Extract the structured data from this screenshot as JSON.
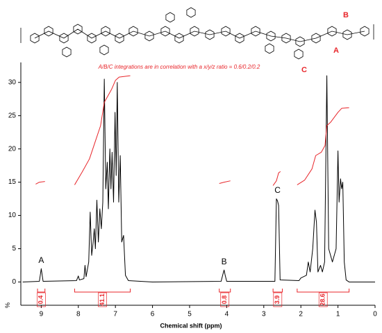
{
  "chart_data": {
    "type": "line",
    "note": "A/B/C integrations are in correlation with a x/y/z ratio = 0.6/0.2/0.2",
    "x_label": "Chemical shift (ppm)",
    "y_label": "%",
    "xlim": [
      9.55,
      0
    ],
    "ylim": [
      -3.5,
      33
    ],
    "xticks": [
      9,
      8,
      7,
      6,
      5,
      4,
      3,
      2,
      1,
      0
    ],
    "yticks": [
      0,
      5,
      10,
      15,
      20,
      25,
      30
    ],
    "series": [
      {
        "color": "#000000",
        "x": [
          9.5,
          9.05,
          9.0,
          8.95,
          8.05,
          8.0,
          7.97,
          7.85,
          7.82,
          7.79,
          7.72,
          7.68,
          7.64,
          7.6,
          7.57,
          7.54,
          7.5,
          7.46,
          7.42,
          7.38,
          7.34,
          7.3,
          7.26,
          7.22,
          7.19,
          7.15,
          7.12,
          7.09,
          7.05,
          7.01,
          6.98,
          6.95,
          6.91,
          6.87,
          6.83,
          6.78,
          6.73,
          6.65,
          6.0,
          4.15,
          4.1,
          4.07,
          4.04,
          4.0,
          2.7,
          2.66,
          2.63,
          2.6,
          2.56,
          2.05,
          2.0,
          1.85,
          1.8,
          1.75,
          1.68,
          1.62,
          1.58,
          1.54,
          1.47,
          1.42,
          1.36,
          1.3,
          1.25,
          1.15,
          1.05,
          1.0,
          0.97,
          0.93,
          0.9,
          0.87,
          0.83,
          0.78,
          0.7,
          0.0
        ],
        "values": [
          0,
          0.1,
          2.0,
          0.1,
          0.2,
          0.9,
          0.3,
          0.5,
          2.5,
          0.8,
          3,
          10.5,
          4,
          6,
          8,
          5,
          12.3,
          6,
          11,
          8,
          12,
          30.5,
          14,
          18,
          11,
          20,
          14,
          19.5,
          12,
          25.5,
          16,
          30,
          12,
          19,
          6,
          7,
          1,
          0.2,
          0,
          0.1,
          1.2,
          1.8,
          1.0,
          0.1,
          0.1,
          12.5,
          12.2,
          11.5,
          0.3,
          0.2,
          0.6,
          1,
          3,
          1.5,
          5,
          10.8,
          9,
          1.5,
          2.5,
          1.5,
          3,
          31,
          5,
          3,
          5,
          19.7,
          12,
          15.5,
          14,
          15,
          3,
          0.3,
          0,
          0
        ]
      }
    ],
    "integral_curves": [
      {
        "color": "#e8252a",
        "x": [
          9.15,
          9.05,
          8.9
        ],
        "values": [
          14.7,
          15.0,
          15.1
        ]
      },
      {
        "color": "#e8252a",
        "x": [
          8.1,
          7.9,
          7.7,
          7.55,
          7.4,
          7.3,
          7.2,
          7.1,
          7.0,
          6.9,
          6.6
        ],
        "values": [
          14.6,
          16.5,
          18.5,
          21,
          23.5,
          27,
          28,
          29,
          30.3,
          30.8,
          31.0
        ]
      },
      {
        "color": "#e8252a",
        "x": [
          4.2,
          4.07,
          3.9
        ],
        "values": [
          14.8,
          15.0,
          15.2
        ]
      },
      {
        "color": "#e8252a",
        "x": [
          2.75,
          2.66,
          2.6,
          2.55
        ],
        "values": [
          14.5,
          15.2,
          16.4,
          16.6
        ]
      },
      {
        "color": "#e8252a",
        "x": [
          2.1,
          1.9,
          1.7,
          1.6,
          1.45,
          1.35,
          1.3,
          1.2,
          1.0,
          0.9,
          0.7
        ],
        "values": [
          14.6,
          15.3,
          17,
          19,
          19.5,
          20.5,
          23.5,
          24,
          25.5,
          26.1,
          26.2
        ]
      }
    ],
    "integrations": [
      {
        "range": [
          9.1,
          8.9
        ],
        "value": 0.4
      },
      {
        "range": [
          8.1,
          6.6
        ],
        "value": 41.1
      },
      {
        "range": [
          4.2,
          3.9
        ],
        "value": 0.8
      },
      {
        "range": [
          2.75,
          2.5
        ],
        "value": 3.9
      },
      {
        "range": [
          2.1,
          0.7
        ],
        "value": 28.6
      }
    ],
    "peak_labels": [
      {
        "text": "A",
        "x": 9.0,
        "y": 3.2
      },
      {
        "text": "B",
        "x": 4.07,
        "y": 3.0
      },
      {
        "text": "C",
        "x": 2.63,
        "y": 13.7
      }
    ],
    "structure_labels": [
      "B",
      "A",
      "C"
    ]
  }
}
